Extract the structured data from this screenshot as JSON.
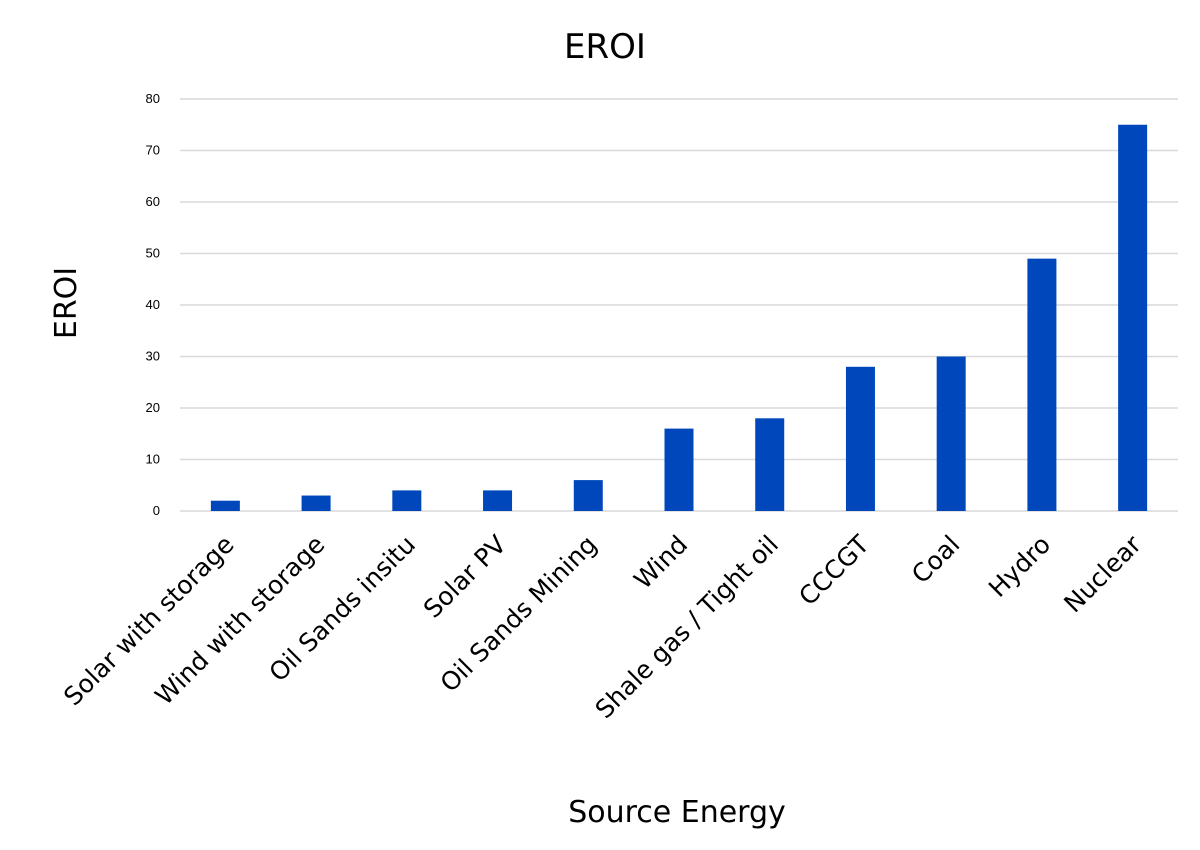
{
  "chart_data": {
    "type": "bar",
    "title": "EROI",
    "xlabel": "Source Energy",
    "ylabel": "EROI",
    "ylim": [
      0,
      80
    ],
    "yticks": [
      0,
      10,
      20,
      30,
      40,
      50,
      60,
      70,
      80
    ],
    "grid": true,
    "bar_color": "#0047bb",
    "categories": [
      "Solar with storage",
      "Wind with storage",
      "Oil Sands insitu",
      "Solar PV",
      "Oil Sands Mining",
      "Wind",
      "Shale gas / Tight oil",
      "CCCGT",
      "Coal",
      "Hydro",
      "Nuclear"
    ],
    "values": [
      2,
      3,
      4,
      4,
      6,
      16,
      18,
      28,
      30,
      49,
      75
    ]
  }
}
